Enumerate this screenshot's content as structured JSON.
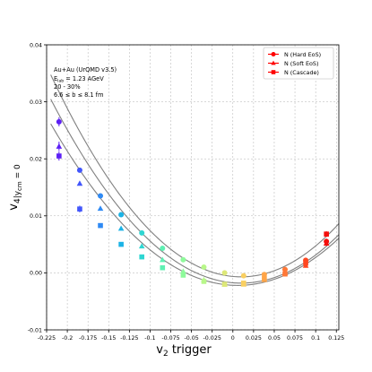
{
  "chart_data": {
    "type": "scatter",
    "xlabel": "v₂ trigger",
    "ylabel": "v₄|ycm = 0",
    "ylabel_main": "v",
    "ylabel_sub_num": "4",
    "ylabel_sub_rest": "|y",
    "ylabel_sub_cm": "cm",
    "ylabel_tail": " = 0",
    "xlabel_main": "v",
    "xlabel_sub": "2",
    "xlabel_rest": " trigger",
    "xlim": [
      -0.225,
      0.128
    ],
    "ylim": [
      -0.01,
      0.04
    ],
    "grid": true,
    "legend_position": "top-right",
    "x_ticks": [
      "-0.225",
      "-0.2",
      "-0.175",
      "-0.15",
      "-0.125",
      "-0.1",
      "-0.075",
      "-0.05",
      "-0.025",
      "0",
      "0.025",
      "0.05",
      "0.075",
      "0.1",
      "0.125"
    ],
    "x_tick_values": [
      -0.225,
      -0.2,
      -0.175,
      -0.15,
      -0.125,
      -0.1,
      -0.075,
      -0.05,
      -0.025,
      0,
      0.025,
      0.05,
      0.075,
      0.1,
      0.125
    ],
    "y_ticks": [
      "-0.01",
      "0.00",
      "0.01",
      "0.02",
      "0.03",
      "0.04"
    ],
    "y_tick_values": [
      -0.01,
      0.0,
      0.01,
      0.02,
      0.03,
      0.04
    ],
    "annotations": [
      "Au+Au (UrQMD v3.5)",
      "E",
      "lab",
      " = 1.23 AGeV",
      "20 - 30%",
      "6.6 ≤ b ≤ 8.1 fm"
    ],
    "series": [
      {
        "name": "N (Hard EoS)",
        "marker": "circle",
        "x": [
          -0.21,
          -0.185,
          -0.16,
          -0.135,
          -0.11,
          -0.085,
          -0.06,
          -0.035,
          -0.01,
          0.013,
          0.038,
          0.063,
          0.088,
          0.113
        ],
        "y": [
          0.0265,
          0.018,
          0.0135,
          0.0102,
          0.007,
          0.0043,
          0.0023,
          0.001,
          0.0,
          -0.0005,
          -0.0003,
          0.0006,
          0.0022,
          0.0055
        ],
        "yerr": [
          0.0008,
          0.0004,
          0.0003,
          0.0003,
          0.0003,
          0.0003,
          0.0003,
          0.0003,
          0.0003,
          0.0003,
          0.0003,
          0.0003,
          0.0004,
          0.0005
        ]
      },
      {
        "name": "N (Soft EoS)",
        "marker": "triangle",
        "x": [
          -0.21,
          -0.185,
          -0.16,
          -0.135,
          -0.11,
          -0.085,
          -0.06,
          -0.035,
          -0.01,
          0.013,
          0.038,
          0.063,
          0.088,
          0.113
        ],
        "y": [
          0.0222,
          0.0157,
          0.0113,
          0.0078,
          0.0047,
          0.0023,
          0.0003,
          -0.0012,
          -0.002,
          -0.002,
          -0.0012,
          0.0,
          0.0013,
          0.0052
        ],
        "yerr": [
          0.0008,
          0.0004,
          0.0003,
          0.0003,
          0.0003,
          0.0003,
          0.0003,
          0.0003,
          0.0003,
          0.0003,
          0.0003,
          0.0003,
          0.0004,
          0.0005
        ]
      },
      {
        "name": "N (Cascade)",
        "marker": "square",
        "x": [
          -0.21,
          -0.185,
          -0.16,
          -0.135,
          -0.11,
          -0.085,
          -0.06,
          -0.035,
          -0.01,
          0.013,
          0.038,
          0.063,
          0.088,
          0.113
        ],
        "y": [
          0.0205,
          0.0112,
          0.0083,
          0.005,
          0.0028,
          0.0009,
          -0.0004,
          -0.0015,
          -0.002,
          -0.0018,
          -0.001,
          -0.0002,
          0.0017,
          0.0068
        ],
        "yerr": [
          0.0008,
          0.0006,
          0.0004,
          0.0003,
          0.0003,
          0.0003,
          0.0003,
          0.0003,
          0.0003,
          0.0003,
          0.0003,
          0.0003,
          0.0004,
          0.0005
        ]
      }
    ],
    "fit_curves": [
      {
        "vertex_x": 0.01,
        "vertex_y": -0.0007,
        "curvature": 0.67
      },
      {
        "vertex_x": 0.01,
        "vertex_y": -0.0018,
        "curvature": 0.61
      },
      {
        "vertex_x": 0.006,
        "vertex_y": -0.0022,
        "curvature": 0.555
      }
    ],
    "point_colors": [
      "#5c1ff5",
      "#4256fb",
      "#2f8af4",
      "#1cb3e6",
      "#2ed6d2",
      "#5ff0b3",
      "#8efa9b",
      "#b8f78a",
      "#dde878",
      "#f9cf61",
      "#ffa548",
      "#ff7837",
      "#ff4620",
      "#f40f0c"
    ],
    "legend_color": "#ff0000",
    "curve_color": "#808080"
  }
}
